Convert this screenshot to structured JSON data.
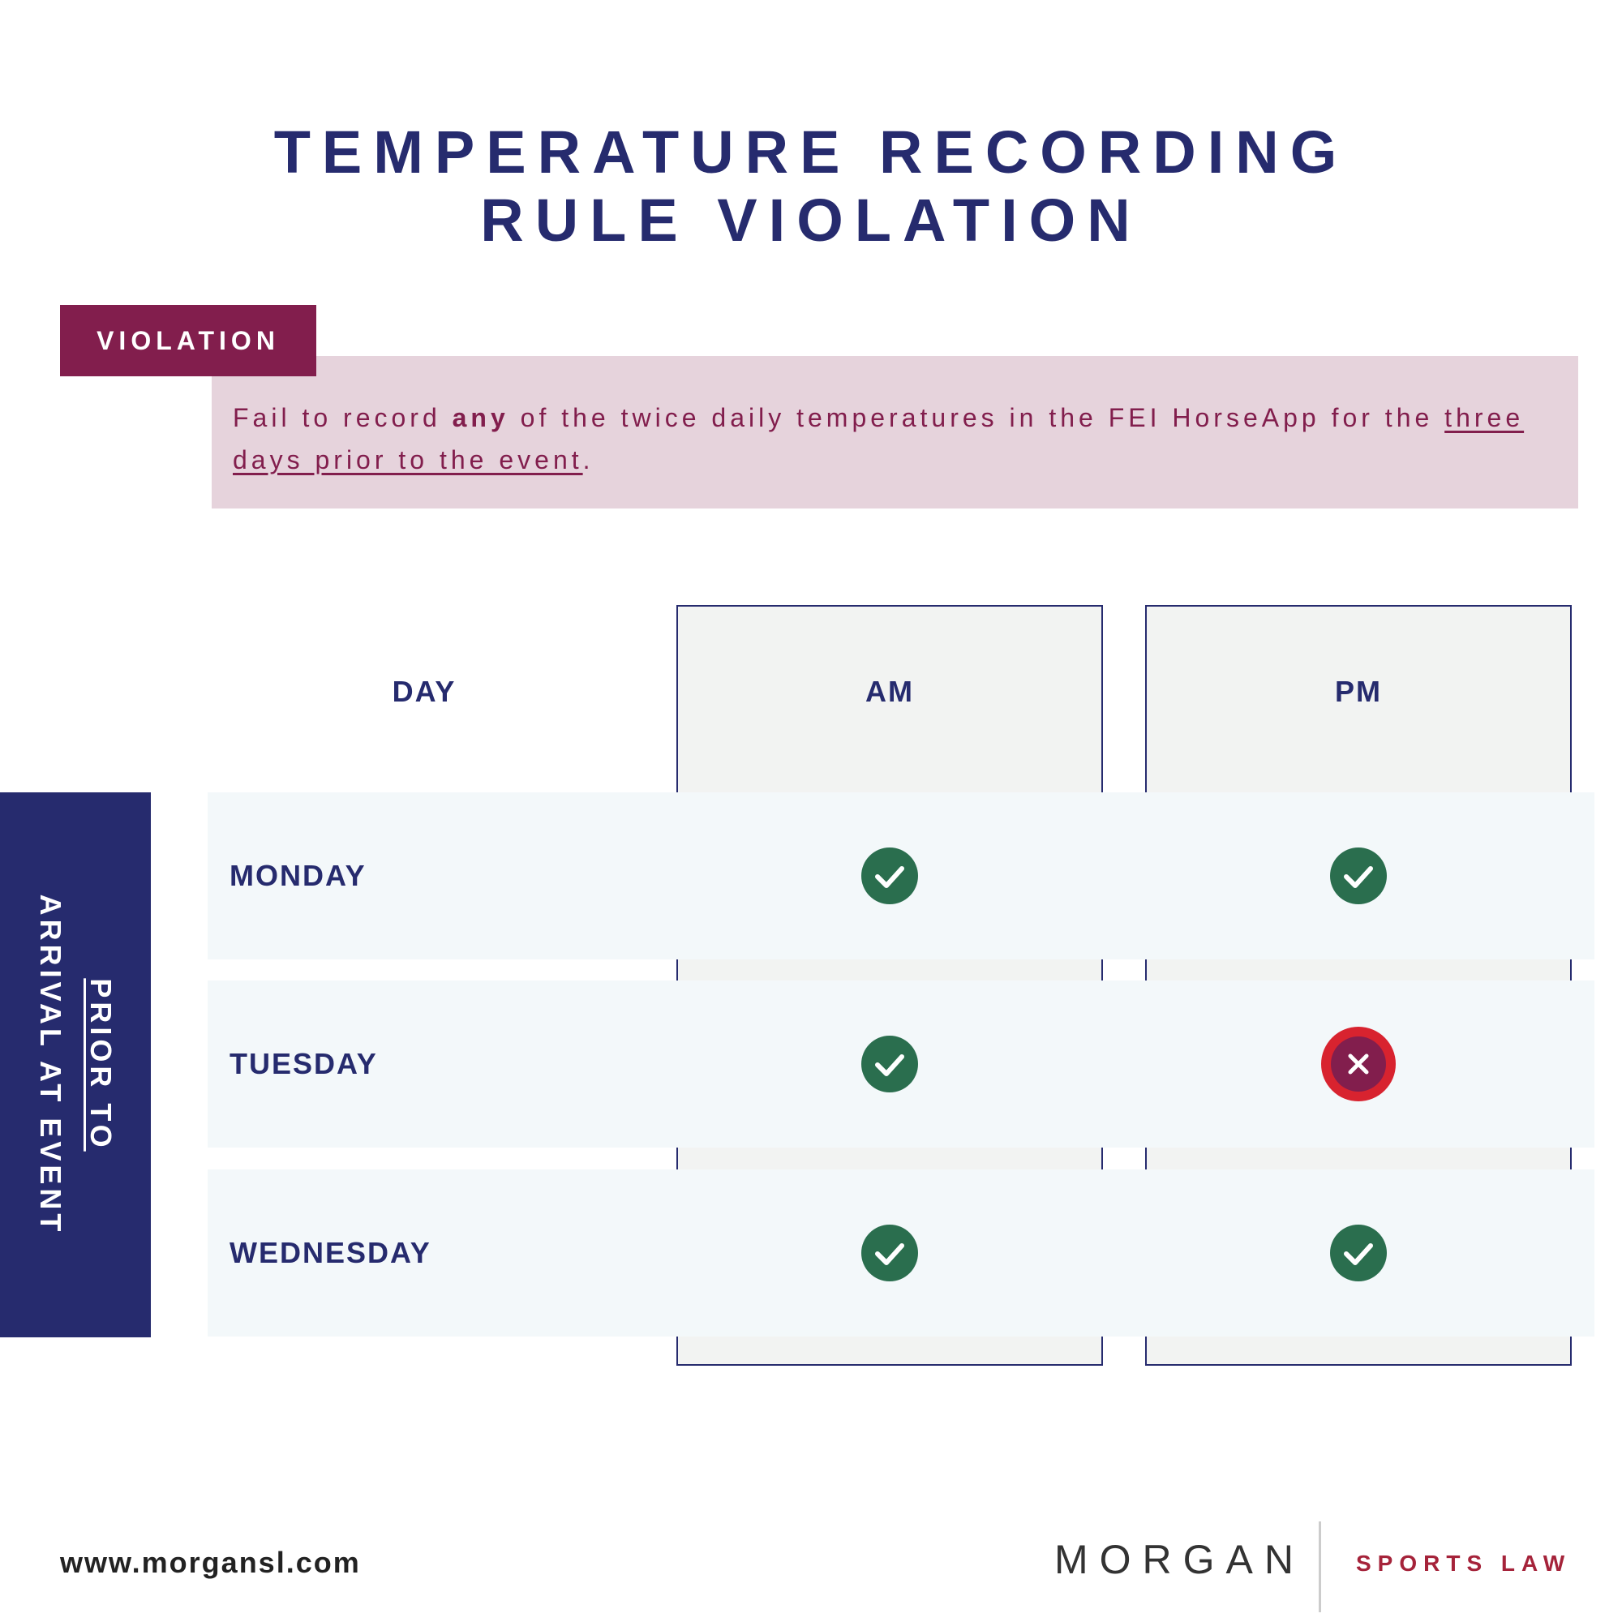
{
  "title": {
    "line1": "TEMPERATURE RECORDING",
    "line2": "RULE VIOLATION"
  },
  "violation": {
    "tag": "VIOLATION",
    "text_before": "Fail to record ",
    "text_bold": "any",
    "text_middle": " of the twice daily temperatures in the FEI HorseApp for the ",
    "text_underlined": "three days prior to the event",
    "text_after": "."
  },
  "table": {
    "headers": {
      "day": "DAY",
      "am": "AM",
      "pm": "PM"
    },
    "rows": [
      {
        "day": "MONDAY",
        "am": "recorded",
        "pm": "recorded"
      },
      {
        "day": "TUESDAY",
        "am": "recorded",
        "pm": "missing"
      },
      {
        "day": "WEDNESDAY",
        "am": "recorded",
        "pm": "recorded"
      }
    ],
    "side_label": {
      "line1": "PRIOR TO",
      "line2": "ARRIVAL AT EVENT"
    }
  },
  "icons": {
    "recorded": "check-circle-icon",
    "missing": "x-circle-icon"
  },
  "colors": {
    "navy": "#262b6e",
    "maroon": "#821e4d",
    "check_green": "#2a6e4e",
    "x_ring_red": "#d8232f",
    "x_inner": "#821e4d"
  },
  "footer": {
    "url": "www.morgansl.com",
    "brand_name": "MORGAN",
    "brand_tag": "SPORTS LAW"
  }
}
